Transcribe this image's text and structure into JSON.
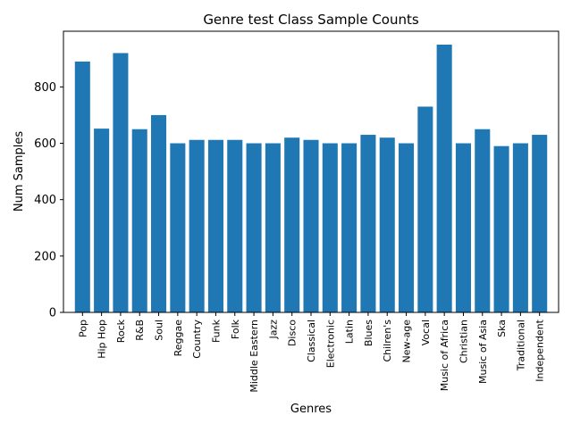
{
  "chart_data": {
    "type": "bar",
    "title": "Genre test Class Sample Counts",
    "xlabel": "Genres",
    "ylabel": "Num Samples",
    "categories": [
      "Pop",
      "Hip Hop",
      "Rock",
      "R&B",
      "Soul",
      "Reggae",
      "Country",
      "Funk",
      "Folk",
      "Middle Eastern",
      "Jazz",
      "Disco",
      "Classical",
      "Electronic",
      "Latin",
      "Blues",
      "Chilren's",
      "New-age",
      "Vocal",
      "Music of Africa",
      "Christian",
      "Music of Asia",
      "Ska",
      "Traditional",
      "Independent"
    ],
    "values": [
      890,
      652,
      920,
      650,
      700,
      600,
      612,
      612,
      612,
      600,
      600,
      620,
      612,
      600,
      600,
      630,
      620,
      600,
      730,
      950,
      600,
      650,
      590,
      600,
      630
    ],
    "ylim": [
      0,
      997.5
    ],
    "yticks": [
      0,
      200,
      400,
      600,
      800
    ],
    "bar_color": "#1f77b4",
    "grid": false,
    "legend": "none"
  }
}
